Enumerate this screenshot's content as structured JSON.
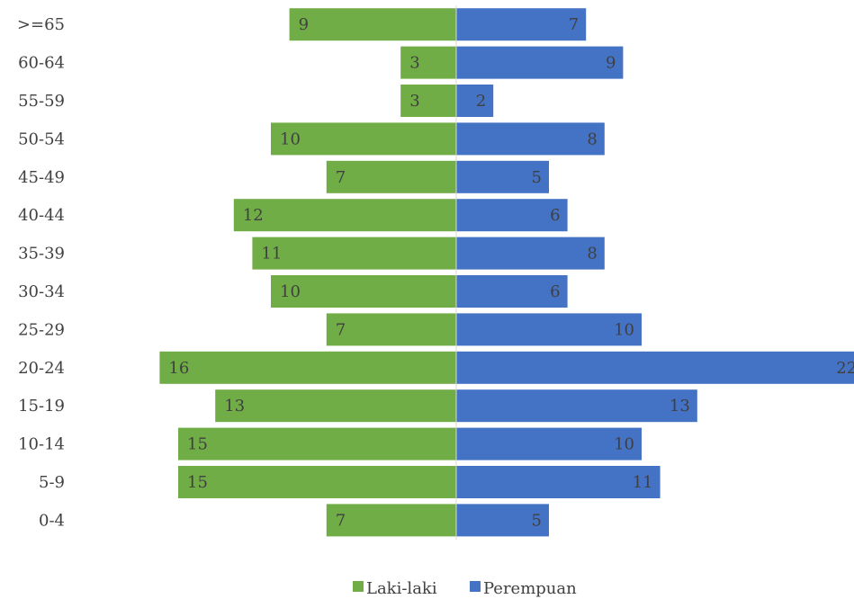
{
  "chart_data": {
    "type": "bar",
    "orientation": "horizontal",
    "layout": "population-pyramid",
    "categories": [
      ">=65",
      "60-64",
      "55-59",
      "50-54",
      "45-49",
      "40-44",
      "35-39",
      "30-34",
      "25-29",
      "20-24",
      "15-19",
      "10-14",
      "5-9",
      "0-4"
    ],
    "series": [
      {
        "name": "Laki-laki",
        "color": "#70ad47",
        "side": "left",
        "values": [
          9,
          3,
          3,
          10,
          7,
          12,
          11,
          10,
          7,
          16,
          13,
          15,
          15,
          7
        ]
      },
      {
        "name": "Perempuan",
        "color": "#4472c4",
        "side": "right",
        "values": [
          7,
          9,
          2,
          8,
          5,
          6,
          8,
          6,
          10,
          22,
          13,
          10,
          11,
          5
        ]
      }
    ],
    "grid": false,
    "legend_position": "bottom",
    "data_labels": true
  }
}
